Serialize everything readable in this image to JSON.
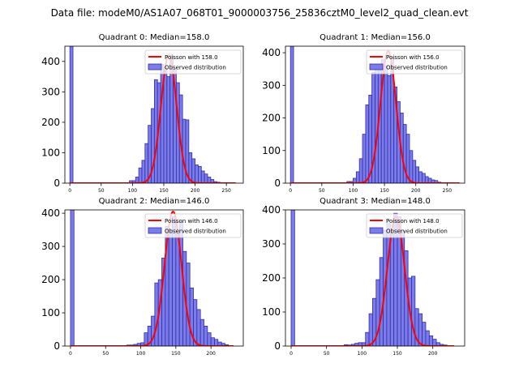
{
  "figure_title": "Data file: modeM0/AS1A07_068T01_9000003756_25836cztM0_level2_quad_clean.evt",
  "colors": {
    "bar_fill": "#7b7bea",
    "bar_edge": "#2f2fa8",
    "poisson_line": "#ff0000",
    "axis": "#000000"
  },
  "chart_data": [
    {
      "type": "bar",
      "title": "Quadrant 0: Median=158.0",
      "bin_width": 5,
      "x_ticks": [
        0,
        50,
        100,
        150,
        200,
        250
      ],
      "y_ticks": [
        0,
        100,
        200,
        300,
        400
      ],
      "xlim": [
        -8,
        277
      ],
      "ylim": [
        0,
        450
      ],
      "bars": [
        [
          0,
          450
        ],
        [
          95,
          8
        ],
        [
          100,
          8
        ],
        [
          105,
          20
        ],
        [
          110,
          50
        ],
        [
          115,
          75
        ],
        [
          120,
          130
        ],
        [
          125,
          190
        ],
        [
          130,
          245
        ],
        [
          135,
          340
        ],
        [
          140,
          330
        ],
        [
          145,
          390
        ],
        [
          150,
          380
        ],
        [
          155,
          350
        ],
        [
          160,
          420
        ],
        [
          165,
          375
        ],
        [
          170,
          330
        ],
        [
          175,
          290
        ],
        [
          180,
          210
        ],
        [
          185,
          208
        ],
        [
          190,
          100
        ],
        [
          195,
          80
        ],
        [
          200,
          60
        ],
        [
          205,
          55
        ],
        [
          210,
          40
        ],
        [
          215,
          30
        ],
        [
          220,
          20
        ],
        [
          225,
          12
        ],
        [
          230,
          5
        ],
        [
          235,
          3
        ]
      ],
      "poisson_mean": 158.0,
      "poisson_peak": 420,
      "poisson_range": [
        0,
        265
      ],
      "legend": [
        "Poisson with 158.0",
        "Observed distribution"
      ]
    },
    {
      "type": "bar",
      "title": "Quadrant 1: Median=156.0",
      "bin_width": 5,
      "x_ticks": [
        0,
        50,
        100,
        150,
        200,
        250
      ],
      "y_ticks": [
        0,
        100,
        200,
        300,
        400
      ],
      "xlim": [
        -8,
        278
      ],
      "ylim": [
        0,
        420
      ],
      "bars": [
        [
          0,
          420
        ],
        [
          90,
          5
        ],
        [
          95,
          5
        ],
        [
          100,
          15
        ],
        [
          105,
          35
        ],
        [
          110,
          75
        ],
        [
          115,
          150
        ],
        [
          120,
          240
        ],
        [
          125,
          270
        ],
        [
          130,
          340
        ],
        [
          135,
          360
        ],
        [
          140,
          345
        ],
        [
          145,
          380
        ],
        [
          150,
          360
        ],
        [
          155,
          330
        ],
        [
          160,
          385
        ],
        [
          165,
          295
        ],
        [
          170,
          250
        ],
        [
          175,
          215
        ],
        [
          180,
          180
        ],
        [
          185,
          150
        ],
        [
          190,
          100
        ],
        [
          195,
          70
        ],
        [
          200,
          50
        ],
        [
          205,
          35
        ],
        [
          210,
          30
        ],
        [
          215,
          20
        ],
        [
          220,
          15
        ],
        [
          225,
          10
        ],
        [
          230,
          8
        ],
        [
          235,
          3
        ]
      ],
      "poisson_mean": 156.0,
      "poisson_peak": 405,
      "poisson_range": [
        0,
        270
      ],
      "legend": [
        "Poisson with 156.0",
        "Observed distribution"
      ]
    },
    {
      "type": "bar",
      "title": "Quadrant 2: Median=146.0",
      "bin_width": 5,
      "x_ticks": [
        0,
        50,
        100,
        150,
        200
      ],
      "y_ticks": [
        0,
        100,
        200,
        300,
        400
      ],
      "xlim": [
        -8,
        246
      ],
      "ylim": [
        0,
        410
      ],
      "bars": [
        [
          0,
          410
        ],
        [
          80,
          3
        ],
        [
          85,
          3
        ],
        [
          90,
          5
        ],
        [
          95,
          8
        ],
        [
          100,
          10
        ],
        [
          105,
          40
        ],
        [
          110,
          60
        ],
        [
          115,
          90
        ],
        [
          120,
          190
        ],
        [
          125,
          200
        ],
        [
          130,
          265
        ],
        [
          135,
          360
        ],
        [
          140,
          350
        ],
        [
          145,
          390
        ],
        [
          150,
          340
        ],
        [
          155,
          375
        ],
        [
          160,
          285
        ],
        [
          165,
          250
        ],
        [
          170,
          175
        ],
        [
          175,
          140
        ],
        [
          180,
          110
        ],
        [
          185,
          80
        ],
        [
          190,
          60
        ],
        [
          195,
          40
        ],
        [
          200,
          25
        ],
        [
          205,
          20
        ],
        [
          210,
          12
        ],
        [
          215,
          8
        ],
        [
          220,
          4
        ]
      ],
      "poisson_mean": 146.0,
      "poisson_peak": 405,
      "poisson_range": [
        0,
        232
      ],
      "legend": [
        "Poisson with 146.0",
        "Observed distribution"
      ]
    },
    {
      "type": "bar",
      "title": "Quadrant 3: Median=148.0",
      "bin_width": 5,
      "x_ticks": [
        0,
        50,
        100,
        150,
        200
      ],
      "y_ticks": [
        0,
        100,
        200,
        300,
        400
      ],
      "xlim": [
        -8,
        245
      ],
      "ylim": [
        0,
        400
      ],
      "bars": [
        [
          0,
          400
        ],
        [
          75,
          4
        ],
        [
          80,
          3
        ],
        [
          85,
          5
        ],
        [
          90,
          8
        ],
        [
          95,
          10
        ],
        [
          100,
          10
        ],
        [
          105,
          40
        ],
        [
          110,
          95
        ],
        [
          115,
          140
        ],
        [
          120,
          195
        ],
        [
          125,
          260
        ],
        [
          130,
          340
        ],
        [
          135,
          360
        ],
        [
          140,
          330
        ],
        [
          145,
          390
        ],
        [
          150,
          380
        ],
        [
          155,
          340
        ],
        [
          160,
          280
        ],
        [
          165,
          200
        ],
        [
          170,
          205
        ],
        [
          175,
          110
        ],
        [
          180,
          95
        ],
        [
          185,
          70
        ],
        [
          190,
          45
        ],
        [
          195,
          30
        ],
        [
          200,
          20
        ],
        [
          205,
          10
        ],
        [
          210,
          5
        ],
        [
          215,
          3
        ]
      ],
      "poisson_mean": 148.0,
      "poisson_peak": 380,
      "poisson_range": [
        0,
        230
      ],
      "legend": [
        "Poisson with 148.0",
        "Observed distribution"
      ]
    }
  ]
}
